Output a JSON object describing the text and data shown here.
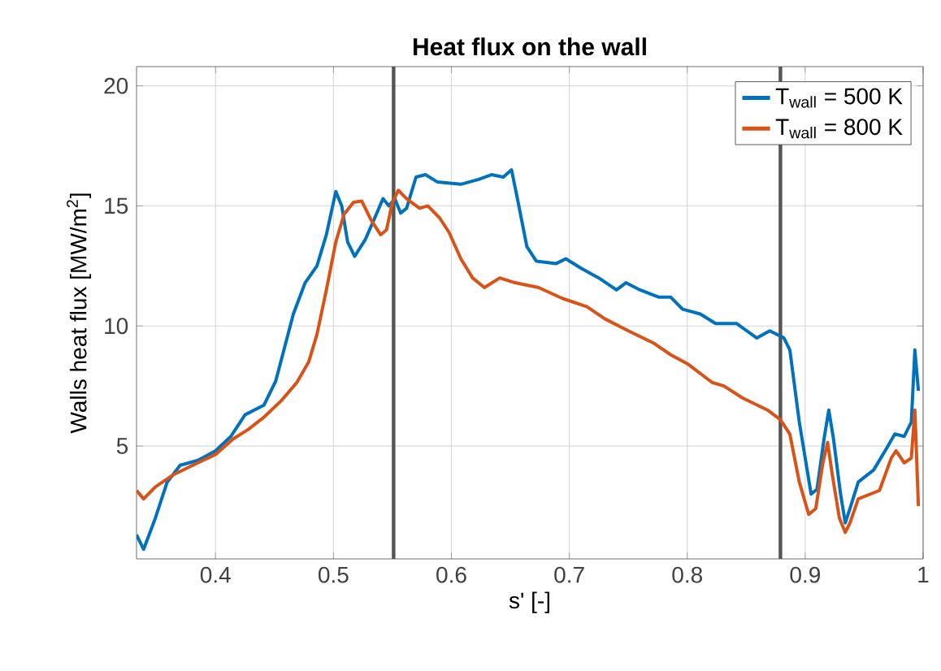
{
  "chart_data": {
    "type": "line",
    "title": "Heat flux on the wall",
    "xlabel": "s' [-]",
    "ylabel": "Walls heat flux [MW/m$^{2}$]",
    "xlim": [
      0.333,
      1
    ],
    "ylim": [
      0.3,
      20.8
    ],
    "xticks": [
      0.4,
      0.5,
      0.6,
      0.7,
      0.8,
      0.9,
      1
    ],
    "yticks": [
      5,
      10,
      15,
      20
    ],
    "grid": true,
    "legend": "top right",
    "line_style": "solid",
    "ref_lines": [
      {
        "axis": "x",
        "value": 0.551,
        "color": "#555555"
      },
      {
        "axis": "x",
        "value": 0.879,
        "color": "#555555"
      }
    ],
    "series": [
      {
        "name": "T$_{wall}$ = 500 K",
        "color": "#0072bd",
        "x": [
          0.333,
          0.339,
          0.349,
          0.359,
          0.37,
          0.385,
          0.4,
          0.413,
          0.425,
          0.441,
          0.451,
          0.458,
          0.466,
          0.476,
          0.486,
          0.494,
          0.502,
          0.507,
          0.512,
          0.518,
          0.527,
          0.535,
          0.542,
          0.547,
          0.552,
          0.557,
          0.562,
          0.57,
          0.578,
          0.588,
          0.608,
          0.623,
          0.634,
          0.644,
          0.651,
          0.656,
          0.664,
          0.672,
          0.689,
          0.697,
          0.71,
          0.725,
          0.74,
          0.748,
          0.76,
          0.776,
          0.786,
          0.796,
          0.811,
          0.824,
          0.842,
          0.859,
          0.87,
          0.882,
          0.887,
          0.895,
          0.905,
          0.91,
          0.916,
          0.92,
          0.924,
          0.93,
          0.934,
          0.938,
          0.945,
          0.958,
          0.969,
          0.976,
          0.984,
          0.99,
          0.993,
          0.996
        ],
        "values": [
          1.3,
          0.7,
          2.0,
          3.5,
          4.2,
          4.4,
          4.8,
          5.4,
          6.3,
          6.7,
          7.7,
          9.0,
          10.5,
          11.8,
          12.5,
          13.8,
          15.6,
          15.0,
          13.5,
          12.9,
          13.6,
          14.5,
          15.3,
          15.0,
          15.3,
          14.7,
          14.9,
          16.2,
          16.3,
          16.0,
          15.9,
          16.1,
          16.3,
          16.2,
          16.5,
          15.3,
          13.3,
          12.7,
          12.6,
          12.8,
          12.4,
          12.0,
          11.5,
          11.8,
          11.5,
          11.2,
          11.2,
          10.7,
          10.5,
          10.1,
          10.1,
          9.5,
          9.8,
          9.5,
          9.0,
          6.0,
          3.0,
          3.2,
          5.3,
          6.5,
          5.3,
          3.0,
          1.8,
          2.4,
          3.5,
          4.0,
          4.9,
          5.5,
          5.4,
          6.0,
          9.0,
          7.3
        ]
      },
      {
        "name": "T$_{wall}$ = 800 K",
        "color": "#d95319",
        "x": [
          0.333,
          0.339,
          0.349,
          0.364,
          0.385,
          0.4,
          0.415,
          0.428,
          0.441,
          0.456,
          0.469,
          0.479,
          0.486,
          0.494,
          0.502,
          0.509,
          0.517,
          0.524,
          0.532,
          0.54,
          0.545,
          0.55,
          0.555,
          0.562,
          0.573,
          0.58,
          0.59,
          0.598,
          0.608,
          0.618,
          0.628,
          0.641,
          0.654,
          0.674,
          0.694,
          0.715,
          0.73,
          0.75,
          0.771,
          0.786,
          0.801,
          0.821,
          0.831,
          0.847,
          0.868,
          0.879,
          0.887,
          0.895,
          0.903,
          0.909,
          0.915,
          0.919,
          0.923,
          0.929,
          0.934,
          0.938,
          0.945,
          0.963,
          0.973,
          0.977,
          0.984,
          0.99,
          0.993,
          0.996
        ],
        "values": [
          3.15,
          2.8,
          3.3,
          3.8,
          4.3,
          4.65,
          5.3,
          5.7,
          6.2,
          6.9,
          7.65,
          8.5,
          9.65,
          11.5,
          13.5,
          14.65,
          15.15,
          15.2,
          14.4,
          13.8,
          14.0,
          15.15,
          15.65,
          15.3,
          14.9,
          15.0,
          14.5,
          13.9,
          12.8,
          12.0,
          11.6,
          12.0,
          11.8,
          11.6,
          11.15,
          10.8,
          10.3,
          9.8,
          9.3,
          8.8,
          8.4,
          7.65,
          7.5,
          7.0,
          6.5,
          6.1,
          5.5,
          3.5,
          2.15,
          2.4,
          4.3,
          5.15,
          3.8,
          2.0,
          1.4,
          1.8,
          2.8,
          3.15,
          4.5,
          4.8,
          4.3,
          4.5,
          6.5,
          2.5
        ]
      }
    ]
  }
}
